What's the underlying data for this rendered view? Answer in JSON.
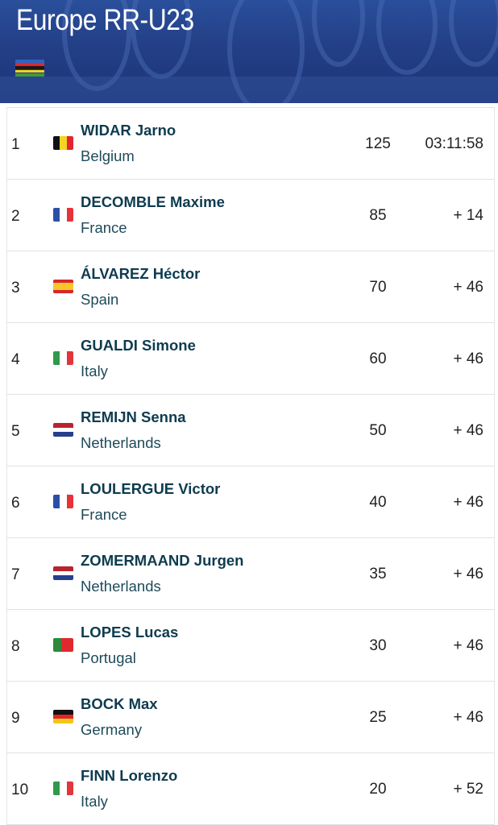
{
  "header": {
    "title": "Europe RR-U23"
  },
  "colors": {
    "header_bg": "#233f86",
    "name_text": "#0e3b4f",
    "divider": "#e2e2e2"
  },
  "results": [
    {
      "rank": "1",
      "name": "WIDAR Jarno",
      "country": "Belgium",
      "flag": "belgium-flag-icon",
      "points": "125",
      "time": "03:11:58"
    },
    {
      "rank": "2",
      "name": "DECOMBLE Maxime",
      "country": "France",
      "flag": "france-flag-icon",
      "points": "85",
      "time": "+ 14"
    },
    {
      "rank": "3",
      "name": "ÁLVAREZ Héctor",
      "country": "Spain",
      "flag": "spain-flag-icon",
      "points": "70",
      "time": "+ 46"
    },
    {
      "rank": "4",
      "name": "GUALDI Simone",
      "country": "Italy",
      "flag": "italy-flag-icon",
      "points": "60",
      "time": "+ 46"
    },
    {
      "rank": "5",
      "name": "REMIJN Senna",
      "country": "Netherlands",
      "flag": "netherlands-flag-icon",
      "points": "50",
      "time": "+ 46"
    },
    {
      "rank": "6",
      "name": "LOULERGUE Victor",
      "country": "France",
      "flag": "france-flag-icon",
      "points": "40",
      "time": "+ 46"
    },
    {
      "rank": "7",
      "name": "ZOMERMAAND Jurgen",
      "country": "Netherlands",
      "flag": "netherlands-flag-icon",
      "points": "35",
      "time": "+ 46"
    },
    {
      "rank": "8",
      "name": "LOPES Lucas",
      "country": "Portugal",
      "flag": "portugal-flag-icon",
      "points": "30",
      "time": "+ 46"
    },
    {
      "rank": "9",
      "name": "BOCK Max",
      "country": "Germany",
      "flag": "germany-flag-icon",
      "points": "25",
      "time": "+ 46"
    },
    {
      "rank": "10",
      "name": "FINN Lorenzo",
      "country": "Italy",
      "flag": "italy-flag-icon",
      "points": "20",
      "time": "+ 52"
    }
  ]
}
